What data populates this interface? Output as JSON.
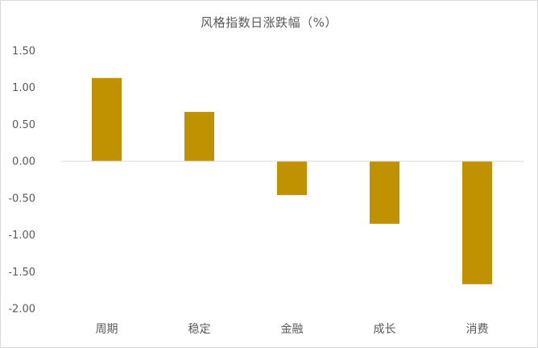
{
  "chart_data": {
    "type": "bar",
    "title": "风格指数日涨跌幅（%）",
    "categories": [
      "周期",
      "稳定",
      "金融",
      "成长",
      "消费"
    ],
    "values": [
      1.13,
      0.67,
      -0.46,
      -0.85,
      -1.67
    ],
    "ylim": [
      -2.0,
      1.5
    ],
    "yticks": [
      "1.50",
      "1.00",
      "0.50",
      "0.00",
      "-0.50",
      "-1.00",
      "-1.50",
      "-2.00"
    ],
    "ytick_values": [
      1.5,
      1.0,
      0.5,
      0.0,
      -0.5,
      -1.0,
      -1.5,
      -2.0
    ],
    "xlabel": "",
    "ylabel": "",
    "grid": false,
    "legend": false,
    "bar_color": "#C09100",
    "axis_color": "#d9d9d9"
  }
}
